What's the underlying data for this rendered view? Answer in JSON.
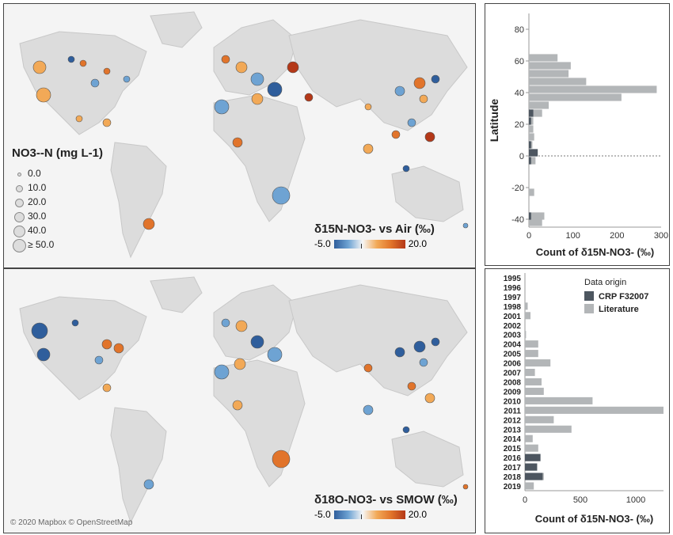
{
  "maps": {
    "top": {
      "colorbar_title": "δ15N-NO3- vs Air (‰)",
      "colorbar_min": "-5.0",
      "colorbar_max": "20.0"
    },
    "bottom": {
      "colorbar_title": "δ18O-NO3- vs SMOW (‰)",
      "colorbar_min": "-5.0",
      "colorbar_max": "20.0",
      "copyright": "© 2020 Mapbox © OpenStreetMap"
    }
  },
  "size_legend": {
    "title": "NO3--N (mg L-1)",
    "items": [
      "0.0",
      "10.0",
      "20.0",
      "30.0",
      "40.0",
      "≥ 50.0"
    ]
  },
  "colors": {
    "crp": "#4d5660",
    "literature": "#b3b6b8",
    "low": "#2f5e9c",
    "mid": "#f6f6f6",
    "high": "#b43818"
  },
  "chart_data": [
    {
      "type": "bar",
      "orientation": "horizontal",
      "ylabel": "Latitude",
      "xlabel": "Count of δ15N-NO3- (‰)",
      "ylim": [
        -45,
        90
      ],
      "xlim": [
        0,
        300
      ],
      "yticks": [
        -40,
        -20,
        0,
        20,
        40,
        60,
        80
      ],
      "xticks": [
        0,
        100,
        200,
        300
      ],
      "series": [
        {
          "name": "Literature",
          "bins": [
            {
              "y": 62,
              "value": 65
            },
            {
              "y": 57,
              "value": 95
            },
            {
              "y": 52,
              "value": 90
            },
            {
              "y": 47,
              "value": 130
            },
            {
              "y": 42,
              "value": 290
            },
            {
              "y": 37,
              "value": 210
            },
            {
              "y": 32,
              "value": 45
            },
            {
              "y": 27,
              "value": 30
            },
            {
              "y": 22,
              "value": 10
            },
            {
              "y": 17,
              "value": 10
            },
            {
              "y": 12,
              "value": 12
            },
            {
              "y": 7,
              "value": 8
            },
            {
              "y": 2,
              "value": 20
            },
            {
              "y": -3,
              "value": 15
            },
            {
              "y": -23,
              "value": 12
            },
            {
              "y": -38,
              "value": 35
            },
            {
              "y": -42,
              "value": 30
            }
          ]
        },
        {
          "name": "CRP F32007",
          "bins": [
            {
              "y": 27,
              "value": 10
            },
            {
              "y": 22,
              "value": 5
            },
            {
              "y": 7,
              "value": 5
            },
            {
              "y": 2,
              "value": 20
            },
            {
              "y": -3,
              "value": 5
            },
            {
              "y": -38,
              "value": 5
            }
          ]
        }
      ]
    },
    {
      "type": "bar",
      "orientation": "horizontal",
      "xlabel": "Count of δ15N-NO3- (‰)",
      "legend_title": "Data origin",
      "legend": [
        "CRP F32007",
        "Literature"
      ],
      "xlim": [
        0,
        1250
      ],
      "xticks": [
        0,
        500,
        1000
      ],
      "categories": [
        "1995",
        "1996",
        "1997",
        "1998",
        "2001",
        "2002",
        "2003",
        "2004",
        "2005",
        "2006",
        "2007",
        "2008",
        "2009",
        "2010",
        "2011",
        "2012",
        "2013",
        "2014",
        "2015",
        "2016",
        "2017",
        "2018",
        "2019"
      ],
      "series": [
        {
          "name": "Literature",
          "values": [
            0,
            0,
            0,
            25,
            50,
            0,
            10,
            120,
            120,
            230,
            90,
            150,
            170,
            610,
            1250,
            260,
            420,
            70,
            120,
            140,
            110,
            170,
            80
          ]
        },
        {
          "name": "CRP F32007",
          "values": [
            0,
            0,
            0,
            0,
            0,
            0,
            0,
            0,
            0,
            0,
            0,
            0,
            0,
            0,
            0,
            0,
            0,
            0,
            0,
            140,
            110,
            160,
            0
          ]
        }
      ]
    }
  ]
}
